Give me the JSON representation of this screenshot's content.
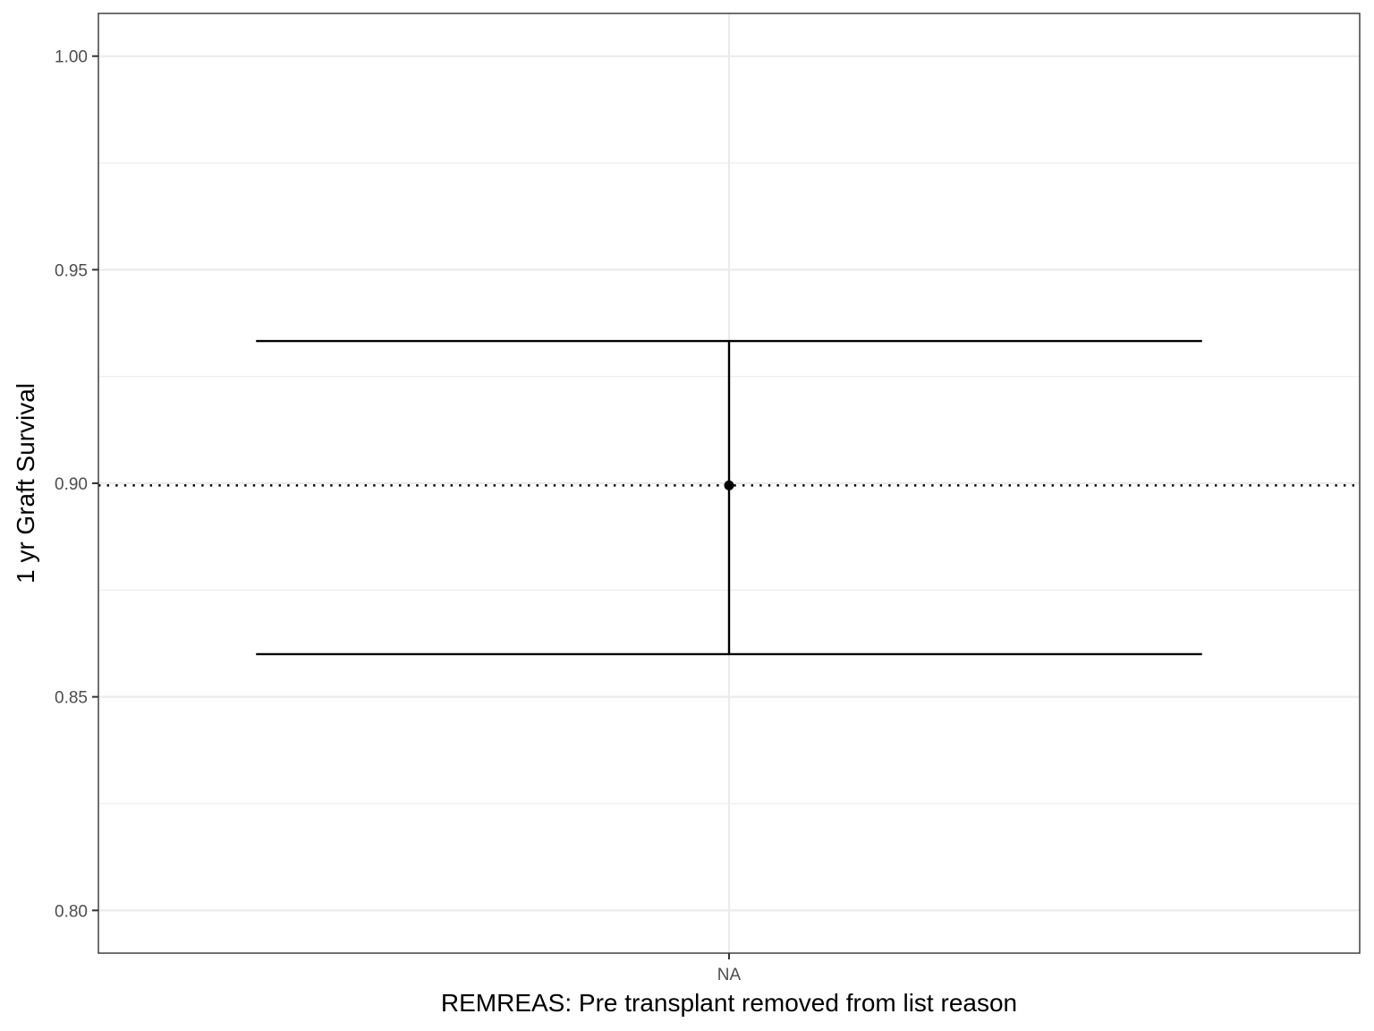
{
  "chart_data": {
    "type": "errorbar",
    "categories": [
      "NA"
    ],
    "points": [
      {
        "category": "NA",
        "estimate": 0.8995,
        "lower": 0.86,
        "upper": 0.9333
      }
    ],
    "reference_line": {
      "y": 0.8995,
      "style": "dotted"
    },
    "xlabel": "REMREAS: Pre transplant removed from list reason",
    "ylabel": "1 yr Graft Survival",
    "ylim": [
      0.79,
      1.01
    ],
    "yticks": [
      0.8,
      0.85,
      0.9,
      0.95,
      1.0
    ],
    "ytick_labels": [
      "0.80",
      "0.85",
      "0.90",
      "0.95",
      "1.00"
    ],
    "grid": true,
    "theme": "bw",
    "colors": {
      "mark": "#000000",
      "grid": "#ebebeb",
      "panel_border": "#333333",
      "tick_text": "#4d4d4d"
    }
  }
}
